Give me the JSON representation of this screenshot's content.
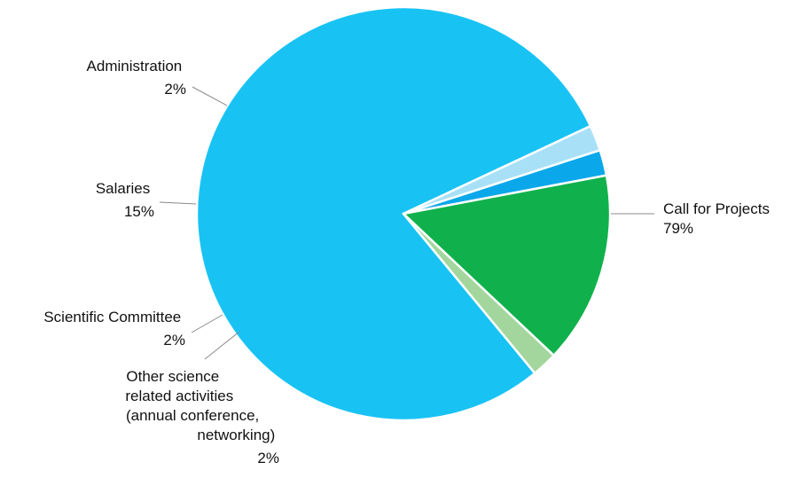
{
  "chart_data": {
    "type": "pie",
    "slices": [
      {
        "key": "call",
        "label_lines": [
          "Call for Projects"
        ],
        "value_label": "79%",
        "value": 79,
        "color": "#18c3f4"
      },
      {
        "key": "other",
        "label_lines": [
          "Other science",
          "related activities",
          "(annual conference,",
          "networking)"
        ],
        "value_label": "2%",
        "value": 2,
        "color": "#a8e1f7"
      },
      {
        "key": "sci",
        "label_lines": [
          "Scientific Committee"
        ],
        "value_label": "2%",
        "value": 2,
        "color": "#0aa8ea"
      },
      {
        "key": "sal",
        "label_lines": [
          "Salaries"
        ],
        "value_label": "15%",
        "value": 15,
        "color": "#10b14c"
      },
      {
        "key": "adm",
        "label_lines": [
          "Administration"
        ],
        "value_label": "2%",
        "value": 2,
        "color": "#a3d69d"
      }
    ]
  }
}
